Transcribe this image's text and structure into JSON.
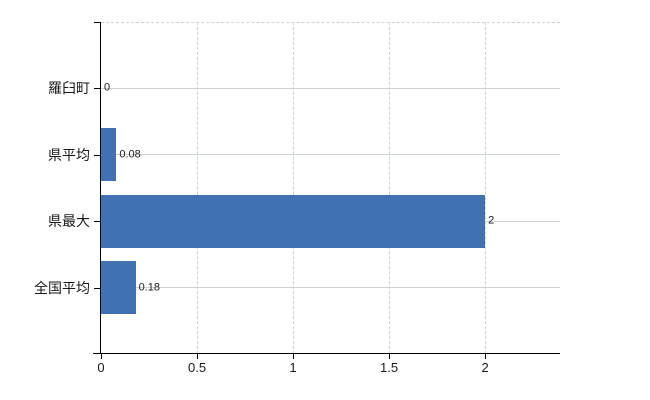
{
  "chart_data": {
    "type": "bar",
    "orientation": "horizontal",
    "title": "",
    "xlabel": "",
    "ylabel": "",
    "categories": [
      "羅臼町",
      "県平均",
      "県最大",
      "全国平均"
    ],
    "values": [
      0,
      0.08,
      2,
      0.18
    ],
    "value_labels": [
      "0",
      "0.08",
      "2",
      "0.18"
    ],
    "x_ticks": [
      0,
      0.5,
      1,
      1.5,
      2
    ],
    "x_tick_labels": [
      "0",
      "0.5",
      "1",
      "1.5",
      "2"
    ],
    "xlim": [
      0,
      2.39
    ],
    "grid": {
      "horizontal_style": "solid",
      "vertical_style": "dashed",
      "top_border_style": "dashed"
    },
    "legend": "none",
    "colors": {
      "bar": "#4071b0",
      "grid_horizontal": "#ccd5cb",
      "grid_vertical": "#cdd6cd",
      "axis": "#000000",
      "text": "#1a1a1a",
      "background": "#ffffff"
    }
  }
}
